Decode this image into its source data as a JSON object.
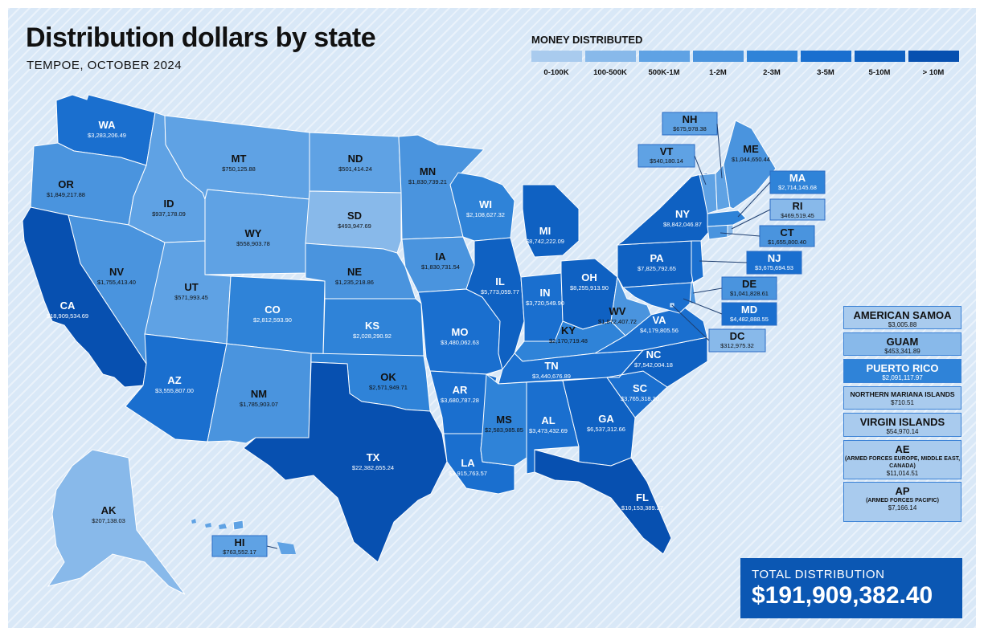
{
  "header": {
    "title": "Distribution dollars by state",
    "subtitle": "TEMPOE, OCTOBER 2024"
  },
  "legend": {
    "title": "MONEY DISTRIBUTED",
    "bins": [
      {
        "label": "0-100K",
        "color": "#a9cbee"
      },
      {
        "label": "100-500K",
        "color": "#88b9ea"
      },
      {
        "label": "500K-1M",
        "color": "#5fa2e4"
      },
      {
        "label": "1-2M",
        "color": "#4a94de"
      },
      {
        "label": "2-3M",
        "color": "#2f83d8"
      },
      {
        "label": "3-5M",
        "color": "#1a6fcf"
      },
      {
        "label": "5-10M",
        "color": "#0f61c2"
      },
      {
        "label": "> 10M",
        "color": "#0750b0"
      }
    ]
  },
  "states": {
    "WA": {
      "abbr": "WA",
      "value": "$3,283,206.49",
      "bin": 5
    },
    "OR": {
      "abbr": "OR",
      "value": "$1,849,217.88",
      "bin": 3
    },
    "CA": {
      "abbr": "CA",
      "value": "$18,909,534.69",
      "bin": 7
    },
    "ID": {
      "abbr": "ID",
      "value": "$937,178.09",
      "bin": 2
    },
    "NV": {
      "abbr": "NV",
      "value": "$1,755,413.40",
      "bin": 3
    },
    "MT": {
      "abbr": "MT",
      "value": "$750,125.88",
      "bin": 2
    },
    "WY": {
      "abbr": "WY",
      "value": "$558,903.78",
      "bin": 2
    },
    "UT": {
      "abbr": "UT",
      "value": "$571,993.45",
      "bin": 2
    },
    "AZ": {
      "abbr": "AZ",
      "value": "$3,555,807.00",
      "bin": 5
    },
    "CO": {
      "abbr": "CO",
      "value": "$2,812,593.90",
      "bin": 4
    },
    "NM": {
      "abbr": "NM",
      "value": "$1,785,903.07",
      "bin": 3
    },
    "ND": {
      "abbr": "ND",
      "value": "$501,414.24",
      "bin": 2
    },
    "SD": {
      "abbr": "SD",
      "value": "$493,947.69",
      "bin": 1
    },
    "NE": {
      "abbr": "NE",
      "value": "$1,235,218.86",
      "bin": 3
    },
    "KS": {
      "abbr": "KS",
      "value": "$2,028,290.92",
      "bin": 4
    },
    "OK": {
      "abbr": "OK",
      "value": "$2,571,949.71",
      "bin": 4
    },
    "TX": {
      "abbr": "TX",
      "value": "$22,382,655.24",
      "bin": 7
    },
    "MN": {
      "abbr": "MN",
      "value": "$1,830,739.21",
      "bin": 3
    },
    "IA": {
      "abbr": "IA",
      "value": "$1,830,731.54",
      "bin": 3
    },
    "MO": {
      "abbr": "MO",
      "value": "$3,480,062.63",
      "bin": 5
    },
    "AR": {
      "abbr": "AR",
      "value": "$3,680,787.28",
      "bin": 5
    },
    "LA": {
      "abbr": "LA",
      "value": "$3,915,763.57",
      "bin": 5
    },
    "WI": {
      "abbr": "WI",
      "value": "$2,108,627.32",
      "bin": 4
    },
    "IL": {
      "abbr": "IL",
      "value": "$5,773,059.77",
      "bin": 6
    },
    "MI": {
      "abbr": "MI",
      "value": "$8,742,222.09",
      "bin": 6
    },
    "IN": {
      "abbr": "IN",
      "value": "$3,720,549.90",
      "bin": 5
    },
    "OH": {
      "abbr": "OH",
      "value": "$8,255,913.90",
      "bin": 6
    },
    "KY": {
      "abbr": "KY",
      "value": "$2,170,719.48",
      "bin": 4
    },
    "TN": {
      "abbr": "TN",
      "value": "$3,440,676.89",
      "bin": 5
    },
    "MS": {
      "abbr": "MS",
      "value": "$2,583,985.85",
      "bin": 4
    },
    "AL": {
      "abbr": "AL",
      "value": "$3,473,432.69",
      "bin": 5
    },
    "GA": {
      "abbr": "GA",
      "value": "$6,537,312.66",
      "bin": 6
    },
    "FL": {
      "abbr": "FL",
      "value": "$10,153,389.27",
      "bin": 7
    },
    "SC": {
      "abbr": "SC",
      "value": "$3,765,318.30",
      "bin": 5
    },
    "NC": {
      "abbr": "NC",
      "value": "$7,542,004.18",
      "bin": 6
    },
    "VA": {
      "abbr": "VA",
      "value": "$4,179,805.56",
      "bin": 5
    },
    "WV": {
      "abbr": "WV",
      "value": "$1,872,407.72",
      "bin": 3
    },
    "PA": {
      "abbr": "PA",
      "value": "$7,825,792.65",
      "bin": 6
    },
    "NY": {
      "abbr": "NY",
      "value": "$8,842,046.87",
      "bin": 6
    },
    "NJ": {
      "abbr": "NJ",
      "value": "$3,675,694.93",
      "bin": 5
    },
    "DE": {
      "abbr": "DE",
      "value": "$1,041,828.61",
      "bin": 3
    },
    "MD": {
      "abbr": "MD",
      "value": "$4,482,888.55",
      "bin": 5
    },
    "DC": {
      "abbr": "DC",
      "value": "$312,975.32",
      "bin": 1
    },
    "CT": {
      "abbr": "CT",
      "value": "$1,655,800.40",
      "bin": 3
    },
    "RI": {
      "abbr": "RI",
      "value": "$469,519.45",
      "bin": 1
    },
    "MA": {
      "abbr": "MA",
      "value": "$2,714,145.68",
      "bin": 4
    },
    "VT": {
      "abbr": "VT",
      "value": "$540,180.14",
      "bin": 2
    },
    "NH": {
      "abbr": "NH",
      "value": "$675,978.38",
      "bin": 2
    },
    "ME": {
      "abbr": "ME",
      "value": "$1,044,650.44",
      "bin": 3
    },
    "AK": {
      "abbr": "AK",
      "value": "$207,138.03",
      "bin": 1
    },
    "HI": {
      "abbr": "HI",
      "value": "$763,552.17",
      "bin": 2
    }
  },
  "territories": [
    {
      "name": "AMERICAN SAMOA",
      "sub": "",
      "value": "$3,005.88",
      "bin": 0
    },
    {
      "name": "GUAM",
      "sub": "",
      "value": "$453,341.89",
      "bin": 1
    },
    {
      "name": "PUERTO RICO",
      "sub": "",
      "value": "$2,091,117.97",
      "bin": 4
    },
    {
      "name": "NORTHERN MARIANA ISLANDS",
      "sub": "",
      "value": "$710.51",
      "bin": 0
    },
    {
      "name": "VIRGIN ISLANDS",
      "sub": "",
      "value": "$54,970.14",
      "bin": 0
    },
    {
      "name": "AE",
      "sub": "(ARMED FORCES EUROPE, MIDDLE EAST, CANADA)",
      "value": "$11,014.51",
      "bin": 0
    },
    {
      "name": "AP",
      "sub": "(ARMED FORCES PACIFIC)",
      "value": "$7,166.14",
      "bin": 0
    }
  ],
  "total": {
    "label": "TOTAL DISTRIBUTION",
    "value": "$191,909,382.40"
  }
}
